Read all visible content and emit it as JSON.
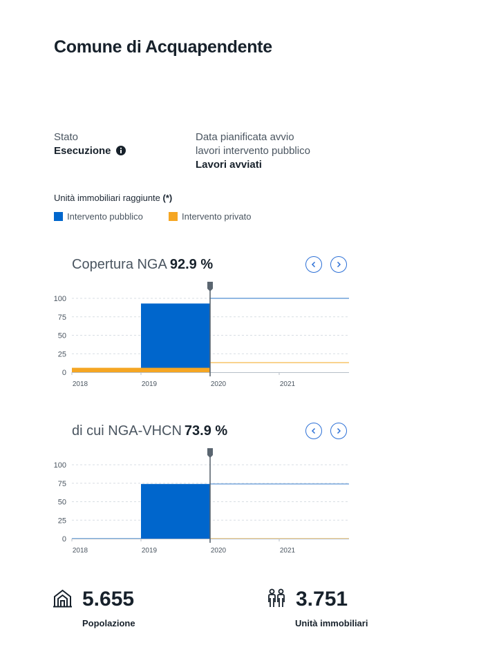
{
  "page": {
    "title": "Comune di Acquapendente"
  },
  "status": {
    "label": "Stato",
    "value": "Esecuzione"
  },
  "planned": {
    "label_line1": "Data pianificata avvio",
    "label_line2": "lavori intervento pubblico",
    "value": "Lavori avviati"
  },
  "legend": {
    "title": "Unità immobiliari raggiunte",
    "title_suffix": "(*)",
    "items": [
      {
        "label": "Intervento pubblico",
        "color": "#0066cc"
      },
      {
        "label": "Intervento privato",
        "color": "#f5a623"
      }
    ]
  },
  "stats": {
    "population": {
      "value": "5.655",
      "label": "Popolazione",
      "icon": "building-icon"
    },
    "units": {
      "value": "3.751",
      "label": "Unità immobiliari",
      "icon": "people-icon"
    }
  },
  "chart_data": [
    {
      "type": "bar",
      "title": "Copertura NGA",
      "headline_value": "92.9 %",
      "x_ticks": [
        "2018",
        "2019",
        "2020",
        "2021"
      ],
      "y_ticks": [
        0,
        25,
        50,
        75,
        100
      ],
      "ylim": [
        0,
        100
      ],
      "grid": true,
      "current_marker": "2020",
      "series": [
        {
          "name": "Intervento pubblico",
          "color": "#0066cc",
          "periods": [
            [
              "2018",
              0
            ],
            [
              "2019",
              93
            ]
          ],
          "projection": 100
        },
        {
          "name": "Intervento privato",
          "color": "#f5a623",
          "periods": [
            [
              "2018",
              6
            ],
            [
              "2019",
              6
            ]
          ],
          "projection": 13
        }
      ]
    },
    {
      "type": "bar",
      "title": "di cui NGA-VHCN",
      "headline_value": "73.9 %",
      "x_ticks": [
        "2018",
        "2019",
        "2020",
        "2021"
      ],
      "y_ticks": [
        0,
        25,
        50,
        75,
        100
      ],
      "ylim": [
        0,
        100
      ],
      "grid": true,
      "current_marker": "2020",
      "series": [
        {
          "name": "Intervento pubblico",
          "color": "#0066cc",
          "periods": [
            [
              "2018",
              0
            ],
            [
              "2019",
              74
            ]
          ],
          "projection": 74
        },
        {
          "name": "Intervento privato",
          "color": "#f5a623",
          "periods": [
            [
              "2018",
              0
            ],
            [
              "2019",
              0
            ]
          ],
          "projection": 0
        }
      ]
    }
  ]
}
